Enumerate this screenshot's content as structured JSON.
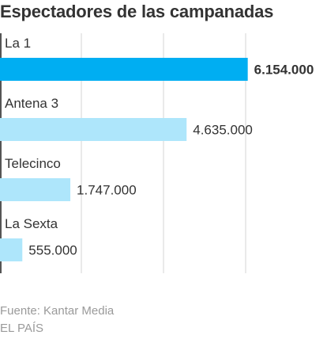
{
  "chart_data": {
    "type": "bar",
    "orientation": "horizontal",
    "title": "Espectadores de las campanadas",
    "categories": [
      "La 1",
      "Antena 3",
      "Telecinco",
      "La Sexta"
    ],
    "values": [
      6154000,
      4635000,
      1747000,
      555000
    ],
    "value_labels": [
      "6.154.000",
      "4.635.000",
      "1.747.000",
      "555.000"
    ],
    "highlight_index": 0,
    "xlim": [
      0,
      6200000
    ],
    "grid": true,
    "xlabel": "",
    "ylabel": ""
  },
  "colors": {
    "highlight_bar": "#00aef2",
    "bar": "#aee6fb",
    "grid": "#d4d4d4",
    "axis": "#555555"
  },
  "footer": {
    "source": "Fuente: Kantar Media",
    "brand": "EL PAÍS"
  }
}
